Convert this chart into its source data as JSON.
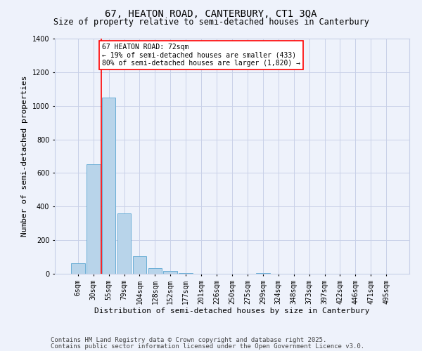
{
  "title1": "67, HEATON ROAD, CANTERBURY, CT1 3QA",
  "title2": "Size of property relative to semi-detached houses in Canterbury",
  "xlabel": "Distribution of semi-detached houses by size in Canterbury",
  "ylabel": "Number of semi-detached properties",
  "categories": [
    "6sqm",
    "30sqm",
    "55sqm",
    "79sqm",
    "104sqm",
    "128sqm",
    "152sqm",
    "177sqm",
    "201sqm",
    "226sqm",
    "250sqm",
    "275sqm",
    "299sqm",
    "324sqm",
    "348sqm",
    "373sqm",
    "397sqm",
    "422sqm",
    "446sqm",
    "471sqm",
    "495sqm"
  ],
  "values": [
    62,
    650,
    1050,
    360,
    105,
    35,
    18,
    5,
    0,
    0,
    0,
    0,
    5,
    0,
    0,
    0,
    0,
    0,
    0,
    0,
    0
  ],
  "bar_color": "#b8d4ea",
  "bar_edge_color": "#6aaed6",
  "vline_position": 1.5,
  "vline_color": "red",
  "annotation_text": "67 HEATON ROAD: 72sqm\n← 19% of semi-detached houses are smaller (433)\n80% of semi-detached houses are larger (1,820) →",
  "annotation_box_color": "white",
  "annotation_box_edgecolor": "red",
  "ylim": [
    0,
    1400
  ],
  "yticks": [
    0,
    200,
    400,
    600,
    800,
    1000,
    1200,
    1400
  ],
  "footer1": "Contains HM Land Registry data © Crown copyright and database right 2025.",
  "footer2": "Contains public sector information licensed under the Open Government Licence v3.0.",
  "background_color": "#eef2fb",
  "grid_color": "#c8d0e8",
  "title_fontsize": 10,
  "subtitle_fontsize": 8.5,
  "axis_label_fontsize": 8,
  "tick_fontsize": 7,
  "annotation_fontsize": 7,
  "footer_fontsize": 6.5
}
